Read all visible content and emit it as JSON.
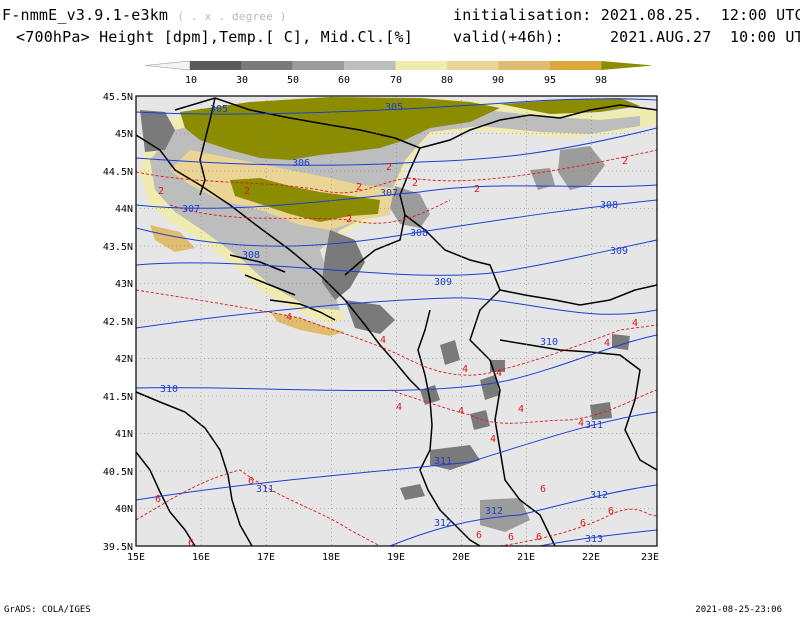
{
  "header": {
    "model": "F-nmmE_v3.9.1-e3km",
    "model_note": "( . x . degree )",
    "fields": "<700hPa> Height [dpm],Temp.[ C], Mid.Cl.[%]",
    "init_label": "initialisation:",
    "init_value": "2021.08.25.  12:00 UTC",
    "valid_label": "valid(+46h):",
    "valid_value": "2021.AUG.27  10:00 UTC"
  },
  "colorbar": {
    "levels": [
      "10",
      "30",
      "50",
      "60",
      "70",
      "80",
      "90",
      "95",
      "98"
    ],
    "colors": [
      "#5a5a5a",
      "#7a7a7a",
      "#9c9c9c",
      "#bdbdbd",
      "#f0ecb0",
      "#ead596",
      "#e0bd6e",
      "#dca83c",
      "#8c8c00"
    ]
  },
  "axes": {
    "lat_labels": [
      "45.5N",
      "45N",
      "44.5N",
      "44N",
      "43.5N",
      "43N",
      "42.5N",
      "42N",
      "41.5N",
      "41N",
      "40.5N",
      "40N",
      "39.5N"
    ],
    "lon_labels": [
      "15E",
      "16E",
      "17E",
      "18E",
      "19E",
      "20E",
      "21E",
      "22E",
      "23E"
    ]
  },
  "height_labels": [
    "305",
    "305",
    "306",
    "307",
    "307",
    "308",
    "308",
    "308",
    "309",
    "309",
    "310",
    "310",
    "311",
    "311",
    "311",
    "312",
    "312",
    "312",
    "313"
  ],
  "temp_labels": [
    "2",
    "2",
    "2",
    "2",
    "2",
    "2",
    "2",
    "2",
    "4",
    "4",
    "4",
    "4",
    "4",
    "4",
    "4",
    "4",
    "4",
    "4",
    "4",
    "6",
    "6",
    "6",
    "6",
    "6",
    "6",
    "6",
    "6",
    "6"
  ],
  "colors": {
    "background": "#e6e6e6",
    "height_contour": "#1a3fd0",
    "temp_contour": "#e01818",
    "borders": "#000000"
  },
  "footer": {
    "left": "GrADS: COLA/IGES",
    "right": "2021-08-25-23:06"
  }
}
